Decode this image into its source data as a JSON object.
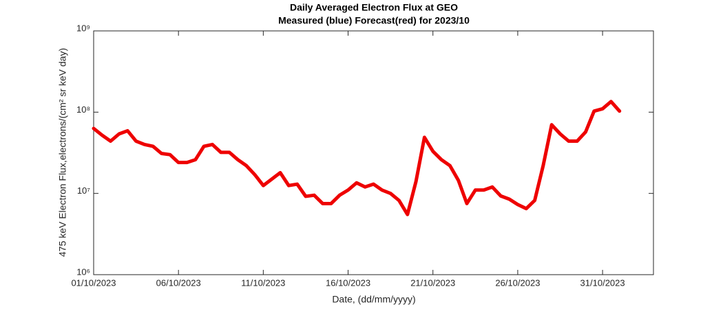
{
  "chart_data": {
    "type": "line",
    "title": "Daily Averaged Electron Flux at GEO",
    "subtitle": "Measured (blue) Forecast(red) for 2023/10",
    "x_label": "Date, (dd/mm/yyyy)",
    "y_label": "475 keV Electron Flux,electrons/(cm² sr keV day)",
    "log_y": true,
    "xlim": [
      0,
      33
    ],
    "xticks": [
      {
        "value": 0,
        "label": "01/10/2023"
      },
      {
        "value": 5,
        "label": "06/10/2023"
      },
      {
        "value": 10,
        "label": "11/10/2023"
      },
      {
        "value": 15,
        "label": "16/10/2023"
      },
      {
        "value": 20,
        "label": "21/10/2023"
      },
      {
        "value": 25,
        "label": "26/10/2023"
      },
      {
        "value": 30,
        "label": "31/10/2023"
      }
    ],
    "ylim": [
      1000000,
      1000000000
    ],
    "yticks": [
      {
        "value": 1000000,
        "label": "10⁶"
      },
      {
        "value": 10000000,
        "label": "10⁷"
      },
      {
        "value": 100000000,
        "label": "10⁸"
      },
      {
        "value": 1000000000,
        "label": "10⁹"
      }
    ],
    "x": [
      0,
      0.5,
      1,
      1.5,
      2,
      2.5,
      3,
      3.5,
      4,
      4.5,
      5,
      5.5,
      6,
      6.5,
      7,
      7.5,
      8,
      8.5,
      9,
      9.5,
      10,
      10.5,
      11,
      11.5,
      12,
      12.5,
      13,
      13.5,
      14,
      14.5,
      15,
      15.5,
      16,
      16.5,
      17,
      17.5,
      18,
      18.5,
      19,
      19.5,
      20,
      20.5,
      21,
      21.5,
      22,
      22.5,
      23,
      23.5,
      24,
      24.5,
      25,
      25.5,
      26,
      26.5,
      27,
      27.5,
      28,
      28.5,
      29,
      29.5,
      30,
      30.5,
      31
    ],
    "series": [
      {
        "name": "Forecast",
        "color": "#ee0000",
        "values": [
          63000000,
          52000000,
          44000000,
          54000000,
          59000000,
          44000000,
          40000000,
          38000000,
          31000000,
          30000000,
          24000000,
          24000000,
          26000000,
          38000000,
          40000000,
          32000000,
          32000000,
          26000000,
          22000000,
          17000000,
          12500000,
          15000000,
          18000000,
          12500000,
          13000000,
          9200000,
          9500000,
          7500000,
          7500000,
          9500000,
          11000000,
          13500000,
          12000000,
          13000000,
          11000000,
          10000000,
          8200000,
          5500000,
          14000000,
          49000000,
          33000000,
          26000000,
          22000000,
          14500000,
          7500000,
          11000000,
          11000000,
          12000000,
          9300000,
          8500000,
          7300000,
          6500000,
          8200000,
          22000000,
          70000000,
          54000000,
          44000000,
          44000000,
          57000000,
          103000000,
          110000000,
          135000000,
          103000000
        ]
      }
    ]
  }
}
